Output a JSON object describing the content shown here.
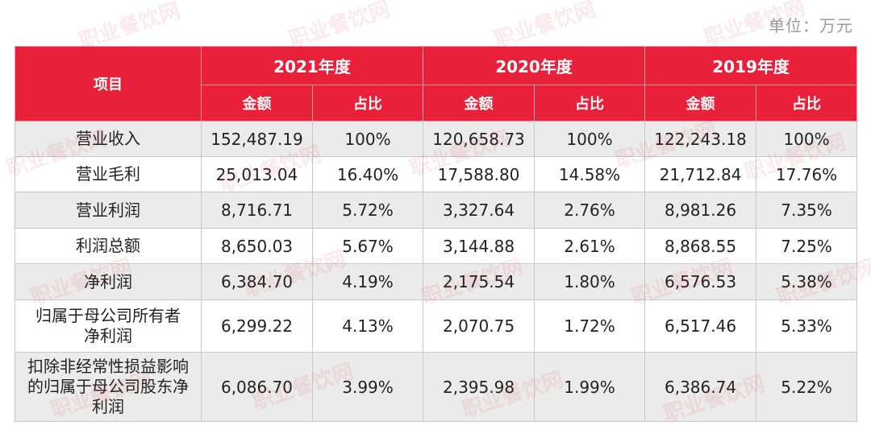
{
  "unit_label": "单位：万元",
  "watermark": "职业餐饮网",
  "table": {
    "header": {
      "item": "项目",
      "years": [
        "2021年度",
        "2020年度",
        "2019年度"
      ],
      "amount": "金额",
      "ratio": "占比"
    },
    "rows": [
      {
        "item": "营业收入",
        "cells": [
          "152,487.19",
          "100%",
          "120,658.73",
          "100%",
          "122,243.18",
          "100%"
        ]
      },
      {
        "item": "营业毛利",
        "cells": [
          "25,013.04",
          "16.40%",
          "17,588.80",
          "14.58%",
          "21,712.84",
          "17.76%"
        ]
      },
      {
        "item": "营业利润",
        "cells": [
          "8,716.71",
          "5.72%",
          "3,327.64",
          "2.76%",
          "8,981.26",
          "7.35%"
        ]
      },
      {
        "item": "利润总额",
        "cells": [
          "8,650.03",
          "5.67%",
          "3,144.88",
          "2.61%",
          "8,868.55",
          "7.25%"
        ]
      },
      {
        "item": "净利润",
        "cells": [
          "6,384.70",
          "4.19%",
          "2,175.54",
          "1.80%",
          "6,576.53",
          "5.38%"
        ]
      },
      {
        "item": "归属于母公司所有者净利润",
        "cells": [
          "6,299.22",
          "4.13%",
          "2,070.75",
          "1.72%",
          "6,517.46",
          "5.33%"
        ]
      },
      {
        "item": "扣除非经常性损益影响的归属于母公司股东净利润",
        "cells": [
          "6,086.70",
          "3.99%",
          "2,395.98",
          "1.99%",
          "6,386.74",
          "5.22%"
        ]
      }
    ]
  }
}
